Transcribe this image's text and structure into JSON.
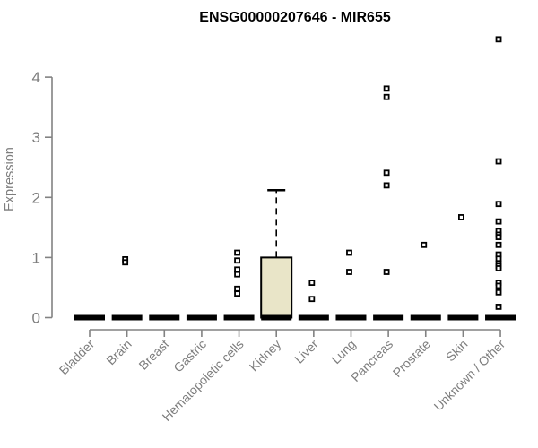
{
  "chart_data": {
    "type": "boxplot",
    "title": "ENSG00000207646 - MIR655",
    "ylabel": "Expression",
    "xlabel": "",
    "yticks": [
      0,
      1,
      2,
      3,
      4
    ],
    "ylim": [
      0,
      4.8
    ],
    "grid": false,
    "legend": "none",
    "categories": [
      "Bladder",
      "Brain",
      "Breast",
      "Gastric",
      "Hematopoietic cells",
      "Kidney",
      "Liver",
      "Lung",
      "Pancreas",
      "Prostate",
      "Skin",
      "Unknown / Other"
    ],
    "series": [
      {
        "category": "Bladder",
        "median": 0,
        "box": [
          0,
          0
        ],
        "whisker_high": 0,
        "outliers": []
      },
      {
        "category": "Brain",
        "median": 0,
        "box": [
          0,
          0
        ],
        "whisker_high": 0,
        "outliers": [
          0.97,
          0.92
        ]
      },
      {
        "category": "Breast",
        "median": 0,
        "box": [
          0,
          0
        ],
        "whisker_high": 0,
        "outliers": []
      },
      {
        "category": "Gastric",
        "median": 0,
        "box": [
          0,
          0
        ],
        "whisker_high": 0,
        "outliers": []
      },
      {
        "category": "Hematopoietic cells",
        "median": 0,
        "box": [
          0,
          0
        ],
        "whisker_high": 0,
        "outliers": [
          1.08,
          0.95,
          0.8,
          0.72,
          0.48,
          0.4
        ]
      },
      {
        "category": "Kidney",
        "median": 0,
        "box": [
          0,
          1.0
        ],
        "whisker_high": 2.12,
        "outliers": []
      },
      {
        "category": "Liver",
        "median": 0,
        "box": [
          0,
          0
        ],
        "whisker_high": 0,
        "outliers": [
          0.58,
          0.31
        ]
      },
      {
        "category": "Lung",
        "median": 0,
        "box": [
          0,
          0
        ],
        "whisker_high": 0,
        "outliers": [
          1.08,
          0.76
        ]
      },
      {
        "category": "Pancreas",
        "median": 0,
        "box": [
          0,
          0
        ],
        "whisker_high": 0,
        "outliers": [
          3.81,
          3.67,
          2.41,
          2.2,
          0.76
        ]
      },
      {
        "category": "Prostate",
        "median": 0,
        "box": [
          0,
          0
        ],
        "whisker_high": 0,
        "outliers": [
          1.21
        ]
      },
      {
        "category": "Skin",
        "median": 0,
        "box": [
          0,
          0
        ],
        "whisker_high": 0,
        "outliers": [
          1.67
        ]
      },
      {
        "category": "Unknown / Other",
        "median": 0,
        "box": [
          0,
          0
        ],
        "whisker_high": 0,
        "outliers": [
          4.63,
          2.6,
          1.89,
          1.6,
          1.44,
          1.38,
          1.34,
          1.21,
          1.05,
          0.98,
          0.9,
          0.86,
          0.82,
          0.58,
          0.53,
          0.42,
          0.18
        ]
      }
    ],
    "style": {
      "box_fill": "#e9e5c8",
      "box_border": "#000000",
      "marker_color": "#000000",
      "marker_fill": "#ffffff",
      "axis_color": "#828282",
      "label_color": "#7d7d7d",
      "title_color": "#000000",
      "background": "#ffffff"
    }
  }
}
